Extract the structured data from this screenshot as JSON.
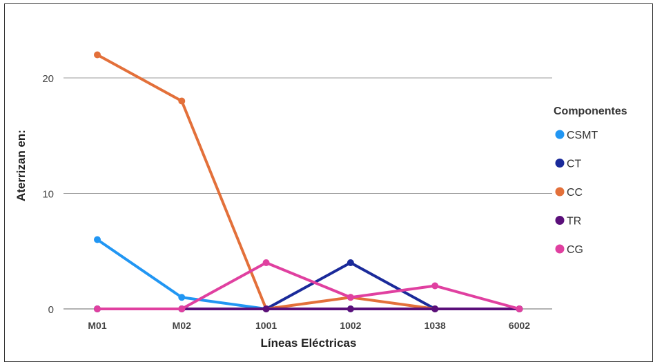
{
  "chart_data": {
    "type": "line",
    "categories": [
      "M01",
      "M02",
      "1001",
      "1002",
      "1038",
      "6002"
    ],
    "xlabel": "Líneas Eléctricas",
    "ylabel": "Aterrizan en:",
    "ylim": [
      0,
      25
    ],
    "yticks": [
      0,
      10,
      20
    ],
    "grid": true,
    "legend_title": "Componentes",
    "legend_position": "right",
    "series": [
      {
        "name": "CSMT",
        "color": "#2196f3",
        "values": [
          6,
          1,
          0,
          0,
          0,
          0
        ]
      },
      {
        "name": "CT",
        "color": "#1a2a9a",
        "values": [
          0,
          0,
          0,
          4,
          0,
          0
        ]
      },
      {
        "name": "CC",
        "color": "#e3703a",
        "values": [
          22,
          18,
          0,
          1,
          0,
          0
        ]
      },
      {
        "name": "TR",
        "color": "#5a0f7a",
        "values": [
          0,
          0,
          0,
          0,
          0,
          0
        ]
      },
      {
        "name": "CG",
        "color": "#e040a0",
        "values": [
          0,
          0,
          4,
          1,
          2,
          0
        ]
      }
    ]
  }
}
